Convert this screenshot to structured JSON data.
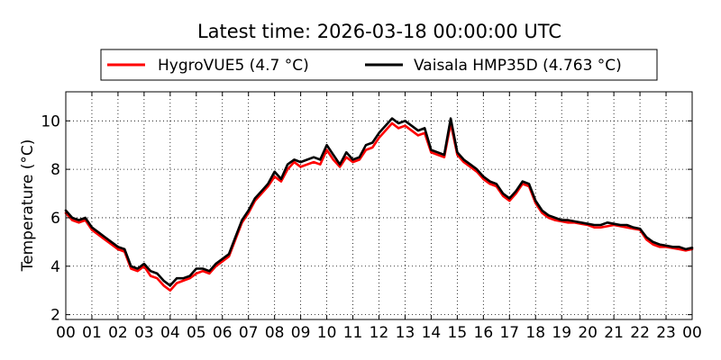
{
  "chart_data": {
    "type": "line",
    "title": "Latest time: 2026-03-18 00:00:00 UTC",
    "xlabel": "",
    "ylabel": "Temperature (°C)",
    "xlim": [
      0,
      24
    ],
    "ylim": [
      1.8,
      11.2
    ],
    "x_ticks": [
      "00",
      "01",
      "02",
      "03",
      "04",
      "05",
      "06",
      "07",
      "08",
      "09",
      "10",
      "11",
      "12",
      "13",
      "14",
      "15",
      "16",
      "17",
      "18",
      "19",
      "20",
      "21",
      "22",
      "23",
      "00"
    ],
    "y_ticks": [
      2,
      4,
      6,
      8,
      10
    ],
    "grid": true,
    "legend_position": "top",
    "x_unit": "hour (UTC)",
    "series": [
      {
        "name": "HygroVUE5 (4.7 °C)",
        "color": "#ff0000",
        "x": [
          0,
          0.25,
          0.5,
          0.75,
          1,
          1.25,
          1.5,
          1.75,
          2,
          2.25,
          2.5,
          2.75,
          3,
          3.25,
          3.5,
          3.75,
          4,
          4.25,
          4.5,
          4.75,
          5,
          5.25,
          5.5,
          5.75,
          6,
          6.25,
          6.5,
          6.75,
          7,
          7.25,
          7.5,
          7.75,
          8,
          8.25,
          8.5,
          8.75,
          9,
          9.25,
          9.5,
          9.75,
          10,
          10.25,
          10.5,
          10.75,
          11,
          11.25,
          11.5,
          11.75,
          12,
          12.25,
          12.5,
          12.75,
          13,
          13.25,
          13.5,
          13.75,
          14,
          14.25,
          14.5,
          14.75,
          15,
          15.25,
          15.5,
          15.75,
          16,
          16.25,
          16.5,
          16.75,
          17,
          17.25,
          17.5,
          17.75,
          18,
          18.25,
          18.5,
          18.75,
          19,
          19.25,
          19.5,
          19.75,
          20,
          20.25,
          20.5,
          20.75,
          21,
          21.25,
          21.5,
          21.75,
          22,
          22.25,
          22.5,
          22.75,
          23,
          23.25,
          23.5,
          23.75,
          24
        ],
        "values": [
          6.2,
          5.9,
          5.8,
          5.9,
          5.5,
          5.3,
          5.1,
          4.9,
          4.7,
          4.6,
          3.9,
          3.8,
          4.0,
          3.6,
          3.5,
          3.2,
          3.0,
          3.3,
          3.4,
          3.5,
          3.7,
          3.8,
          3.7,
          4.0,
          4.2,
          4.4,
          5.1,
          5.8,
          6.2,
          6.7,
          7.0,
          7.3,
          7.7,
          7.5,
          8.0,
          8.3,
          8.1,
          8.2,
          8.3,
          8.2,
          8.8,
          8.4,
          8.1,
          8.5,
          8.3,
          8.4,
          8.8,
          8.9,
          9.3,
          9.6,
          9.9,
          9.7,
          9.8,
          9.6,
          9.4,
          9.5,
          8.7,
          8.6,
          8.5,
          9.9,
          8.6,
          8.3,
          8.1,
          7.9,
          7.6,
          7.4,
          7.3,
          6.9,
          6.7,
          7.0,
          7.4,
          7.3,
          6.6,
          6.2,
          6.0,
          5.9,
          5.85,
          5.8,
          5.8,
          5.75,
          5.7,
          5.6,
          5.6,
          5.65,
          5.7,
          5.65,
          5.6,
          5.55,
          5.5,
          5.1,
          4.9,
          4.8,
          4.8,
          4.75,
          4.7,
          4.65,
          4.7
        ]
      },
      {
        "name": "Vaisala HMP35D (4.763 °C)",
        "color": "#000000",
        "x": [
          0,
          0.25,
          0.5,
          0.75,
          1,
          1.25,
          1.5,
          1.75,
          2,
          2.25,
          2.5,
          2.75,
          3,
          3.25,
          3.5,
          3.75,
          4,
          4.25,
          4.5,
          4.75,
          5,
          5.25,
          5.5,
          5.75,
          6,
          6.25,
          6.5,
          6.75,
          7,
          7.25,
          7.5,
          7.75,
          8,
          8.25,
          8.5,
          8.75,
          9,
          9.25,
          9.5,
          9.75,
          10,
          10.25,
          10.5,
          10.75,
          11,
          11.25,
          11.5,
          11.75,
          12,
          12.25,
          12.5,
          12.75,
          13,
          13.25,
          13.5,
          13.75,
          14,
          14.25,
          14.5,
          14.75,
          15,
          15.25,
          15.5,
          15.75,
          16,
          16.25,
          16.5,
          16.75,
          17,
          17.25,
          17.5,
          17.75,
          18,
          18.25,
          18.5,
          18.75,
          19,
          19.25,
          19.5,
          19.75,
          20,
          20.25,
          20.5,
          20.75,
          21,
          21.25,
          21.5,
          21.75,
          22,
          22.25,
          22.5,
          22.75,
          23,
          23.25,
          23.5,
          23.75,
          24
        ],
        "values": [
          6.3,
          6.0,
          5.9,
          6.0,
          5.6,
          5.4,
          5.2,
          5.0,
          4.8,
          4.7,
          4.0,
          3.9,
          4.1,
          3.8,
          3.7,
          3.4,
          3.2,
          3.5,
          3.5,
          3.6,
          3.9,
          3.9,
          3.8,
          4.1,
          4.3,
          4.5,
          5.2,
          5.9,
          6.3,
          6.8,
          7.1,
          7.4,
          7.9,
          7.6,
          8.2,
          8.4,
          8.3,
          8.4,
          8.5,
          8.4,
          9.0,
          8.6,
          8.2,
          8.7,
          8.4,
          8.5,
          9.0,
          9.1,
          9.5,
          9.8,
          10.1,
          9.9,
          10.0,
          9.8,
          9.6,
          9.7,
          8.8,
          8.7,
          8.6,
          10.1,
          8.7,
          8.4,
          8.2,
          8.0,
          7.7,
          7.5,
          7.4,
          7.0,
          6.8,
          7.1,
          7.5,
          7.4,
          6.7,
          6.3,
          6.1,
          6.0,
          5.9,
          5.9,
          5.85,
          5.8,
          5.75,
          5.7,
          5.7,
          5.8,
          5.75,
          5.7,
          5.7,
          5.6,
          5.55,
          5.2,
          5.0,
          4.9,
          4.85,
          4.8,
          4.8,
          4.7,
          4.76
        ]
      }
    ]
  }
}
